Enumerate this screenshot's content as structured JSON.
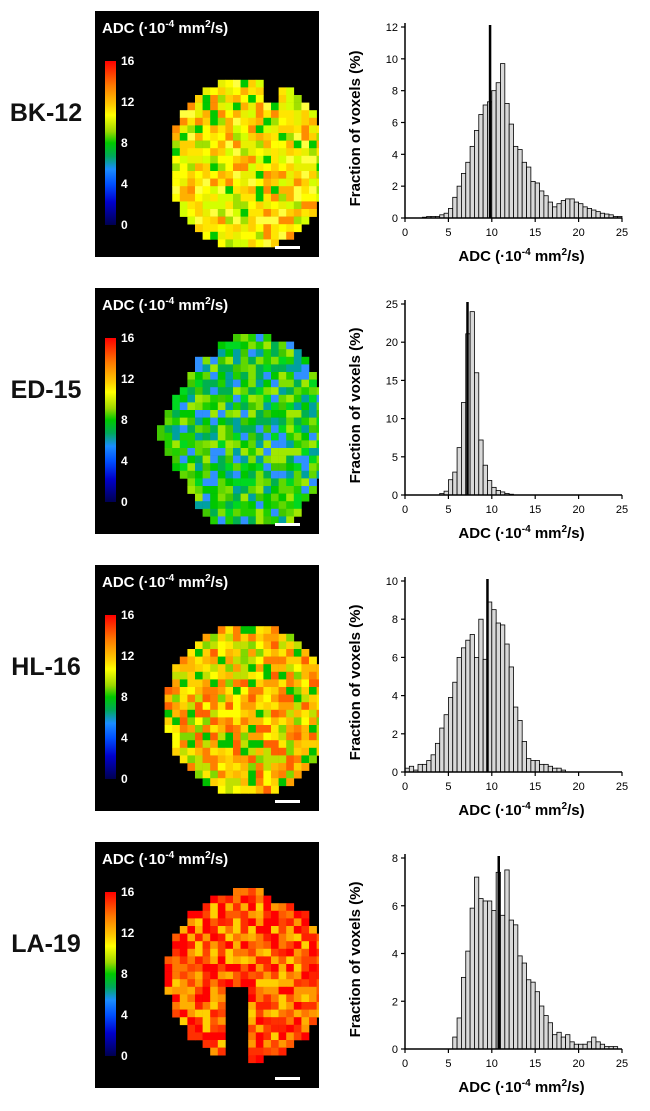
{
  "colorbar": {
    "title_prefix": "ADC (·10",
    "title_exp": "-4",
    "title_unit": " mm",
    "title_exp2": "2",
    "title_suffix": "/s)",
    "ticks": [
      "16",
      "12",
      "8",
      "4",
      "0"
    ]
  },
  "panels": [
    {
      "sample": "BK-12",
      "tone": "yellow"
    },
    {
      "sample": "ED-15",
      "tone": "green"
    },
    {
      "sample": "HL-16",
      "tone": "yellow-orange"
    },
    {
      "sample": "LA-19",
      "tone": "red"
    }
  ],
  "chart_data": [
    {
      "type": "bar",
      "title": "BK-12",
      "xlabel": "ADC (·10-4 mm2/s)",
      "ylabel": "Fraction of voxels (%)",
      "xlim": [
        0,
        25
      ],
      "ylim": [
        0,
        12
      ],
      "xticks": [
        0,
        5,
        10,
        15,
        20,
        25
      ],
      "yticks": [
        0,
        2,
        4,
        6,
        8,
        10,
        12
      ],
      "mean_line": 9.8,
      "bin_width": 0.5,
      "bin_start": 2.0,
      "values": [
        0.05,
        0.1,
        0.1,
        0.1,
        0.2,
        0.3,
        0.6,
        1.3,
        2.0,
        2.8,
        3.5,
        4.5,
        5.5,
        6.5,
        7.1,
        7.3,
        8.0,
        8.5,
        9.7,
        7.2,
        5.9,
        4.5,
        4.3,
        3.5,
        3.2,
        2.3,
        2.2,
        1.7,
        1.4,
        1.0,
        0.7,
        0.9,
        1.1,
        1.2,
        1.2,
        1.0,
        0.9,
        0.7,
        0.6,
        0.5,
        0.4,
        0.3,
        0.25,
        0.2,
        0.1,
        0.1
      ]
    },
    {
      "type": "bar",
      "title": "ED-15",
      "xlabel": "ADC (·10-4 mm2/s)",
      "ylabel": "Fraction of voxels (%)",
      "xlim": [
        0,
        25
      ],
      "ylim": [
        0,
        25
      ],
      "xticks": [
        0,
        5,
        10,
        15,
        20,
        25
      ],
      "yticks": [
        0,
        5,
        10,
        15,
        20,
        25
      ],
      "mean_line": 7.2,
      "bin_width": 0.5,
      "bin_start": 4.0,
      "values": [
        0.2,
        0.5,
        2.0,
        3.0,
        6.2,
        12.1,
        21.1,
        24.0,
        16.0,
        7.2,
        3.9,
        1.9,
        1.0,
        0.6,
        0.4,
        0.2,
        0.1
      ]
    },
    {
      "type": "bar",
      "title": "HL-16",
      "xlabel": "ADC (·10-4 mm2/s)",
      "ylabel": "Fraction of voxels (%)",
      "xlim": [
        0,
        25
      ],
      "ylim": [
        0,
        10
      ],
      "xticks": [
        0,
        5,
        10,
        15,
        20,
        25
      ],
      "yticks": [
        0,
        2,
        4,
        6,
        8,
        10
      ],
      "mean_line": 9.5,
      "bin_width": 0.5,
      "bin_start": 0.0,
      "values": [
        0.2,
        0.3,
        0.1,
        0.4,
        0.4,
        0.6,
        0.9,
        1.5,
        2.3,
        3.0,
        3.9,
        4.7,
        6.0,
        6.5,
        6.9,
        7.2,
        6.0,
        8.0,
        5.9,
        8.9,
        8.5,
        7.8,
        7.7,
        6.7,
        5.5,
        3.4,
        2.7,
        1.6,
        0.7,
        0.6,
        0.6,
        0.4,
        0.4,
        0.3,
        0.2,
        0.2,
        0.1
      ]
    },
    {
      "type": "bar",
      "title": "LA-19",
      "xlabel": "ADC (·10-4 mm2/s)",
      "ylabel": "Fraction of voxels (%)",
      "xlim": [
        0,
        25
      ],
      "ylim": [
        0,
        8
      ],
      "xticks": [
        0,
        5,
        10,
        15,
        20,
        25
      ],
      "yticks": [
        0,
        2,
        4,
        6,
        8
      ],
      "mean_line": 10.8,
      "bin_width": 0.5,
      "bin_start": 5.5,
      "values": [
        0.5,
        1.3,
        3.0,
        4.1,
        5.9,
        7.2,
        6.3,
        6.2,
        6.2,
        5.8,
        7.4,
        5.6,
        7.5,
        5.4,
        5.2,
        3.9,
        3.6,
        2.9,
        2.8,
        2.4,
        1.8,
        1.4,
        1.1,
        0.6,
        0.7,
        0.5,
        0.6,
        0.3,
        0.2,
        0.2,
        0.2,
        0.3,
        0.5,
        0.3,
        0.2,
        0.1,
        0.1,
        0.1
      ]
    }
  ]
}
